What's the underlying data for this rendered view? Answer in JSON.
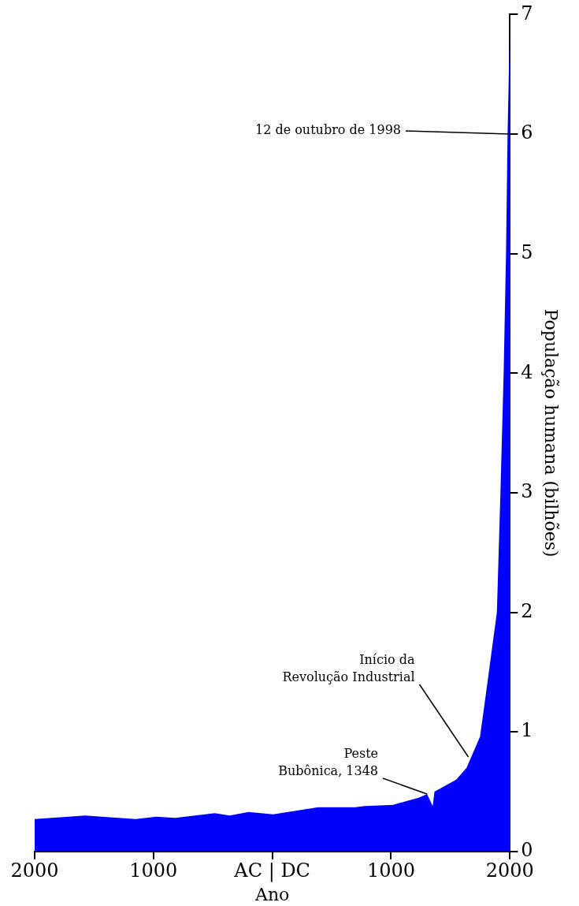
{
  "chart_data": {
    "type": "area",
    "xlabel": "Ano",
    "ylabel": "População humana (bilhões)",
    "x": [
      -2000,
      -2000,
      -1575,
      -1150,
      -977,
      -817,
      -485,
      -359,
      -199,
      7,
      385,
      698,
      777,
      1016,
      1236,
      1302,
      1350,
      1365,
      1548,
      1635,
      1748,
      1794,
      1890,
      1920,
      1947,
      1967,
      1980,
      2000
    ],
    "series": [
      {
        "color": "#0000ff",
        "values": [
          0,
          0.27,
          0.3,
          0.27,
          0.29,
          0.28,
          0.32,
          0.3,
          0.33,
          0.31,
          0.37,
          0.37,
          0.38,
          0.39,
          0.45,
          0.48,
          0.38,
          0.5,
          0.6,
          0.7,
          0.96,
          1.29,
          2,
          3,
          4,
          5,
          6,
          6.95
        ]
      }
    ],
    "xlim": [
      -2000,
      2000
    ],
    "xticks": [
      {
        "value": -2000,
        "label": "2000"
      },
      {
        "value": -1000,
        "label": "1000"
      },
      {
        "value": 0,
        "label": "AC | DC"
      },
      1000,
      2000
    ],
    "ylim": [
      0,
      7
    ],
    "yticks": [
      0,
      1,
      2,
      3,
      4,
      5,
      6,
      7
    ],
    "annotations": [
      {
        "text": "12 de outubro de 1998",
        "x": 1998,
        "y": 6
      },
      {
        "text": "Início da\nRevolução Industrial",
        "x": 1650,
        "y": 0.79
      },
      {
        "text": "Peste\nBubônica, 1348",
        "x": 1302,
        "y": 0.48
      }
    ],
    "grid": false,
    "legend": false
  }
}
